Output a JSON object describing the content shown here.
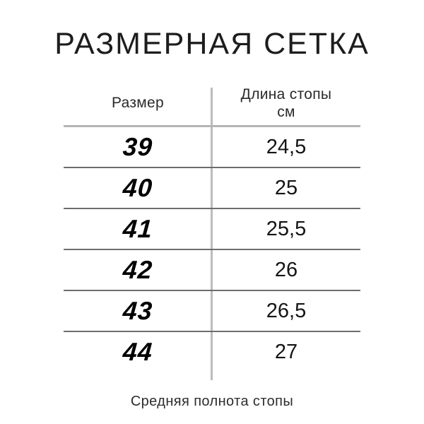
{
  "title": "РАЗМЕРНАЯ СЕТКА",
  "table": {
    "header": {
      "size_label": "Размер",
      "length_label_line1": "Длина стопы",
      "length_label_line2": "см"
    },
    "rows": [
      {
        "size": "39",
        "length": "24,5"
      },
      {
        "size": "40",
        "length": "25"
      },
      {
        "size": "41",
        "length": "25,5"
      },
      {
        "size": "42",
        "length": "26"
      },
      {
        "size": "43",
        "length": "26,5"
      },
      {
        "size": "44",
        "length": "27"
      }
    ]
  },
  "footer": "Средняя полнота стопы",
  "colors": {
    "background": "#ffffff",
    "text": "#1d1d1d",
    "header_separator": "#b5b5b5",
    "row_separator": "#6d6d6d",
    "column_divider": "#bcbcbc"
  },
  "chart_data": {
    "type": "table",
    "title": "РАЗМЕРНАЯ СЕТКА",
    "columns": [
      "Размер",
      "Длина стопы см"
    ],
    "rows": [
      [
        "39",
        "24,5"
      ],
      [
        "40",
        "25"
      ],
      [
        "41",
        "25,5"
      ],
      [
        "42",
        "26"
      ],
      [
        "43",
        "26,5"
      ],
      [
        "44",
        "27"
      ]
    ],
    "footnote": "Средняя полнота стопы",
    "layout": "two-column table, vertical divider between columns, thin horizontal rules between rows"
  }
}
